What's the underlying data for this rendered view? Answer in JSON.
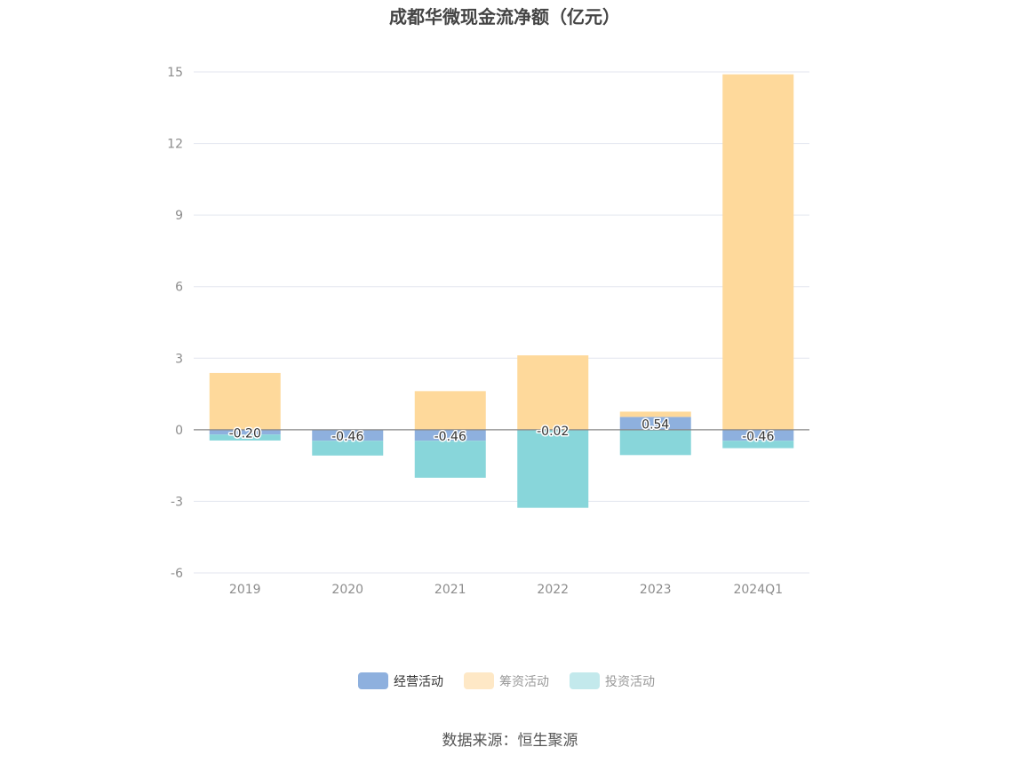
{
  "chart_data": {
    "type": "bar",
    "stacked": true,
    "title": "成都华微现金流净额（亿元）",
    "categories": [
      "2019",
      "2020",
      "2021",
      "2022",
      "2023",
      "2024Q1"
    ],
    "ylim": [
      -6,
      15
    ],
    "yticks": [
      "15",
      "12",
      "9",
      "6",
      "3",
      "0",
      "-3",
      "-6"
    ],
    "grid": true,
    "legend_position": "bottom",
    "series": [
      {
        "name": "经营活动",
        "color": "#8eb0de",
        "values": [
          -0.2,
          -0.46,
          -0.46,
          -0.02,
          0.54,
          -0.46
        ],
        "labels": [
          "-0.20",
          "-0.46",
          "-0.46",
          "-0.02",
          "0.54",
          "-0.46"
        ]
      },
      {
        "name": "筹资活动",
        "color": "#fed99b",
        "values": [
          2.38,
          0,
          1.62,
          3.12,
          0.22,
          14.9
        ]
      },
      {
        "name": "投资活动",
        "color": "#88d6da",
        "values": [
          -0.25,
          -0.62,
          -1.55,
          -3.25,
          -1.06,
          -0.31
        ]
      }
    ],
    "source": "数据来源：恒生聚源"
  },
  "legend_colors": {
    "经营活动": "#8eb0de",
    "筹资活动": "#fee8c6",
    "投资活动": "#c3e9ec"
  }
}
